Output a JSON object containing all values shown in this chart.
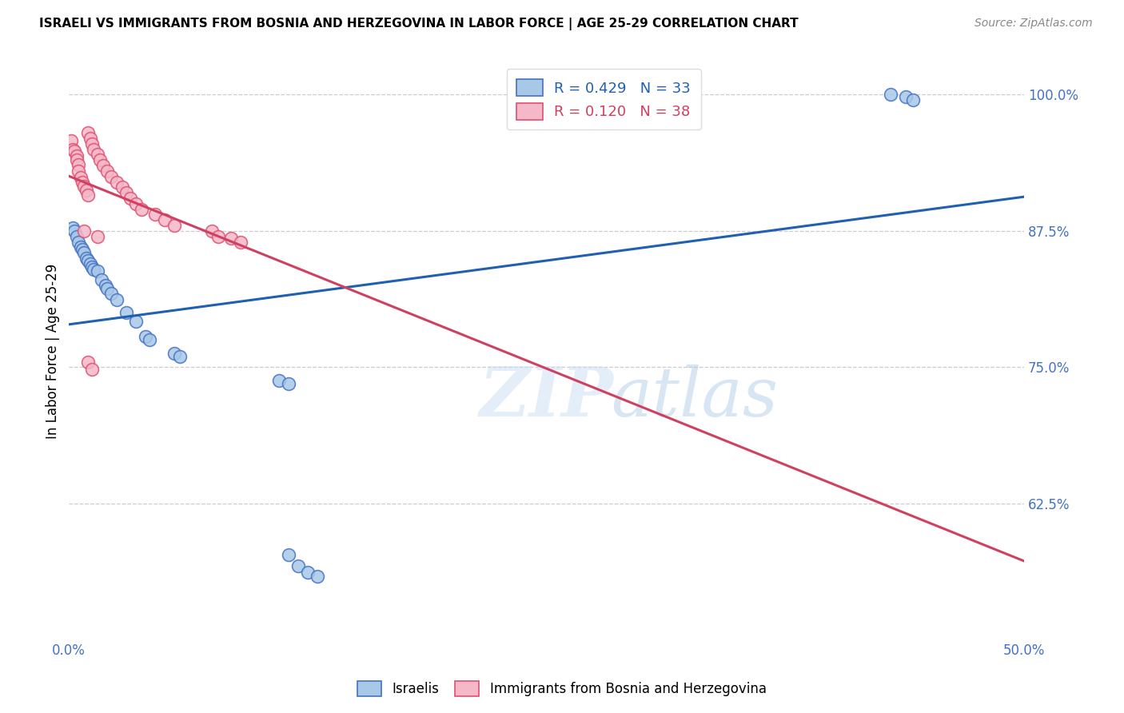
{
  "title": "ISRAELI VS IMMIGRANTS FROM BOSNIA AND HERZEGOVINA IN LABOR FORCE | AGE 25-29 CORRELATION CHART",
  "source": "Source: ZipAtlas.com",
  "ylabel": "In Labor Force | Age 25-29",
  "xlim": [
    0.0,
    0.5
  ],
  "ylim": [
    0.5,
    1.03
  ],
  "yticks": [
    0.625,
    0.75,
    0.875,
    1.0
  ],
  "ytick_labels": [
    "62.5%",
    "75.0%",
    "87.5%",
    "100.0%"
  ],
  "xticks": [
    0.0,
    0.1,
    0.2,
    0.3,
    0.4,
    0.5
  ],
  "xtick_labels": [
    "0.0%",
    "",
    "",
    "",
    "",
    "50.0%"
  ],
  "blue_R": 0.429,
  "blue_N": 33,
  "pink_R": 0.12,
  "pink_N": 38,
  "blue_scatter_color": "#a8c8e8",
  "pink_scatter_color": "#f4b8c8",
  "blue_edge_color": "#4472C4",
  "pink_edge_color": "#E05070",
  "blue_line_color": "#2060B0",
  "pink_line_color": "#D04060",
  "axis_label_color": "#4472C4",
  "grid_color": "#cccccc",
  "title_fontsize": 11,
  "tick_fontsize": 12,
  "legend_fontsize": 13,
  "blue_x": [
    0.002,
    0.003,
    0.004,
    0.005,
    0.006,
    0.007,
    0.008,
    0.009,
    0.01,
    0.011,
    0.012,
    0.013,
    0.015,
    0.017,
    0.019,
    0.02,
    0.022,
    0.025,
    0.03,
    0.035,
    0.04,
    0.042,
    0.055,
    0.058,
    0.11,
    0.115,
    0.43,
    0.438,
    0.442,
    0.115,
    0.12,
    0.125,
    0.13
  ],
  "blue_y": [
    0.878,
    0.875,
    0.87,
    0.865,
    0.86,
    0.858,
    0.855,
    0.85,
    0.848,
    0.845,
    0.842,
    0.84,
    0.838,
    0.83,
    0.825,
    0.822,
    0.818,
    0.812,
    0.8,
    0.792,
    0.778,
    0.775,
    0.763,
    0.76,
    0.738,
    0.735,
    1.0,
    0.998,
    0.995,
    0.578,
    0.568,
    0.562,
    0.558
  ],
  "pink_x": [
    0.001,
    0.002,
    0.003,
    0.004,
    0.004,
    0.005,
    0.005,
    0.006,
    0.007,
    0.008,
    0.009,
    0.01,
    0.01,
    0.011,
    0.012,
    0.013,
    0.015,
    0.016,
    0.018,
    0.02,
    0.022,
    0.025,
    0.028,
    0.03,
    0.032,
    0.035,
    0.038,
    0.045,
    0.05,
    0.055,
    0.075,
    0.078,
    0.085,
    0.09,
    0.01,
    0.012,
    0.008,
    0.015
  ],
  "pink_y": [
    0.958,
    0.95,
    0.948,
    0.944,
    0.94,
    0.936,
    0.93,
    0.924,
    0.92,
    0.916,
    0.912,
    0.908,
    0.965,
    0.96,
    0.955,
    0.95,
    0.945,
    0.94,
    0.935,
    0.93,
    0.925,
    0.92,
    0.915,
    0.91,
    0.905,
    0.9,
    0.895,
    0.89,
    0.885,
    0.88,
    0.875,
    0.87,
    0.868,
    0.865,
    0.755,
    0.748,
    0.875,
    0.87
  ]
}
